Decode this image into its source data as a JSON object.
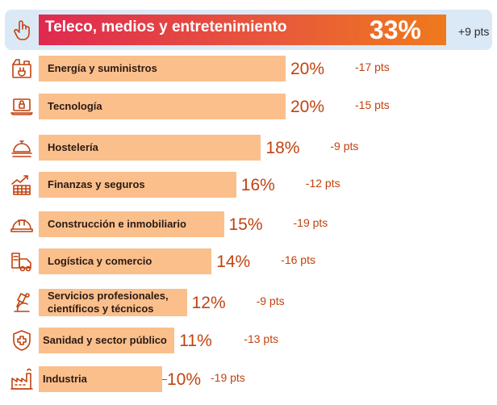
{
  "chart_data": {
    "type": "bar",
    "orientation": "horizontal",
    "title": "",
    "xlabel": "",
    "ylabel": "",
    "xlim": [
      0,
      33
    ],
    "grid": false,
    "categories": [
      "Teleco, medios y entretenimiento",
      "Energía y suministros",
      "Tecnología",
      "Hostelería",
      "Finanzas y seguros",
      "Construcción e inmobiliario",
      "Logística y comercio",
      "Servicios profesionales, científicos y técnicos",
      "Sanidad y sector público",
      "Industria"
    ],
    "category_lines": [
      [
        "Teleco, medios y entretenimiento"
      ],
      [
        "Energía y suministros"
      ],
      [
        "Tecnología"
      ],
      [
        "Hostelería"
      ],
      [
        "Finanzas y seguros"
      ],
      [
        "Construcción e inmobiliario"
      ],
      [
        "Logística y comercio"
      ],
      [
        "Servicios profesionales,",
        "científicos y técnicos"
      ],
      [
        "Sanidad y sector público"
      ],
      [
        "Industria"
      ]
    ],
    "values": [
      33,
      20,
      20,
      18,
      16,
      15,
      14,
      12,
      11,
      10
    ],
    "value_labels": [
      "33%",
      "20%",
      "20%",
      "18%",
      "16%",
      "15%",
      "14%",
      "12%",
      "11%",
      "10%"
    ],
    "change_labels": [
      "+9 pts",
      "-17 pts",
      "-15 pts",
      "-9 pts",
      "-12 pts",
      "-19 pts",
      "-16 pts",
      "-9 pts",
      "-13 pts",
      "-19 pts"
    ],
    "icons": [
      "hand-pointer-icon",
      "energy-plug-icon",
      "laptop-lock-icon",
      "service-cloche-icon",
      "finance-chart-icon",
      "hard-hat-icon",
      "logistics-truck-icon",
      "microscope-icon",
      "medical-cross-shield-icon",
      "factory-icon"
    ],
    "colors": {
      "bar": "#fbbf8c",
      "highlight_gradient": [
        "#df2950",
        "#ef7a1c"
      ],
      "highlight_background": "#dbe9f7",
      "value_text": "#c1420f",
      "icon": "#c1420f"
    }
  }
}
